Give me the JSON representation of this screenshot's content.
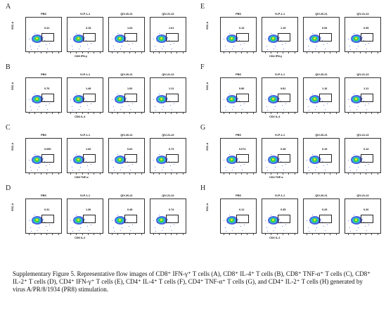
{
  "panels": [
    {
      "letter": "A",
      "ylabel": "SSC-A",
      "xlabel": "CD8 IFN-γ",
      "groups": [
        {
          "name": "PBS",
          "value": "0.41"
        },
        {
          "name": "VLP-1-1",
          "value": "3.15"
        },
        {
          "name": "QIV-20-21",
          "value": "1.04"
        },
        {
          "name": "QIV-21-22",
          "value": "1.61"
        }
      ]
    },
    {
      "letter": "B",
      "ylabel": "SSC-A",
      "xlabel": "CD8 IL-4",
      "groups": [
        {
          "name": "PBS",
          "value": "0.76"
        },
        {
          "name": "VLP-1-1",
          "value": "1.48"
        },
        {
          "name": "QIV-20-21",
          "value": "1.00"
        },
        {
          "name": "QIV-21-22",
          "value": "1.11"
        }
      ]
    },
    {
      "letter": "C",
      "ylabel": "SSC-A",
      "xlabel": "CD8 TNF-α",
      "groups": [
        {
          "name": "PBS",
          "value": "0.050"
        },
        {
          "name": "VLP-1-1",
          "value": "1.06"
        },
        {
          "name": "QIV-20-21",
          "value": "0.62"
        },
        {
          "name": "QIV-21-22",
          "value": "0.73"
        }
      ]
    },
    {
      "letter": "D",
      "ylabel": "SSC-A",
      "xlabel": "CD8 IL-2",
      "groups": [
        {
          "name": "PBS",
          "value": "0.31"
        },
        {
          "name": "VLP-1-1",
          "value": "1.36"
        },
        {
          "name": "QIV-20-21",
          "value": "0.48"
        },
        {
          "name": "QIV-21-22",
          "value": "0.74"
        }
      ]
    },
    {
      "letter": "E",
      "ylabel": "SSC-A",
      "xlabel": "CD4 IFN-γ",
      "groups": [
        {
          "name": "PBS",
          "value": "0.13"
        },
        {
          "name": "VLP-1-1",
          "value": "1.15"
        },
        {
          "name": "QIV-20-21",
          "value": "0.54"
        },
        {
          "name": "QIV-21-22",
          "value": "0.35"
        }
      ]
    },
    {
      "letter": "F",
      "ylabel": "SSC-A",
      "xlabel": "CD4 IL-4",
      "groups": [
        {
          "name": "PBS",
          "value": "0.86"
        },
        {
          "name": "VLP-1-1",
          "value": "0.81"
        },
        {
          "name": "QIV-20-21",
          "value": "1.16"
        },
        {
          "name": "QIV-21-22",
          "value": "1.11"
        }
      ]
    },
    {
      "letter": "G",
      "ylabel": "SSC-A",
      "xlabel": "CD4 TNF-α",
      "groups": [
        {
          "name": "PBS",
          "value": "0.074"
        },
        {
          "name": "VLP-1-1",
          "value": "0.28"
        },
        {
          "name": "QIV-20-21",
          "value": "0.19"
        },
        {
          "name": "QIV-21-22",
          "value": "0.14"
        }
      ]
    },
    {
      "letter": "H",
      "ylabel": "SSC-A",
      "xlabel": "CD4 IL-2",
      "groups": [
        {
          "name": "PBS",
          "value": "0.11"
        },
        {
          "name": "VLP-1-1",
          "value": "0.35"
        },
        {
          "name": "QIV-20-21",
          "value": "0.25"
        },
        {
          "name": "QIV-21-22",
          "value": "0.20"
        }
      ]
    }
  ],
  "caption": "Supplementary Figure 5. Representative flow images of CD8⁺ IFN-γ⁺ T cells (A), CD8⁺ IL-4⁺ T cells (B), CD8⁺ TNF-α⁺ T cells (C), CD8⁺ IL-2⁺ T cells (D), CD4⁺ IFN-γ⁺ T cells (E), CD4⁺ IL-4⁺ T cells (F), CD4⁺ TNF-α⁺ T cells (G), and CD4⁺ IL-2⁺ T cells (H) generated by virus A/PR/8/1934 (PR8) stimulation."
}
